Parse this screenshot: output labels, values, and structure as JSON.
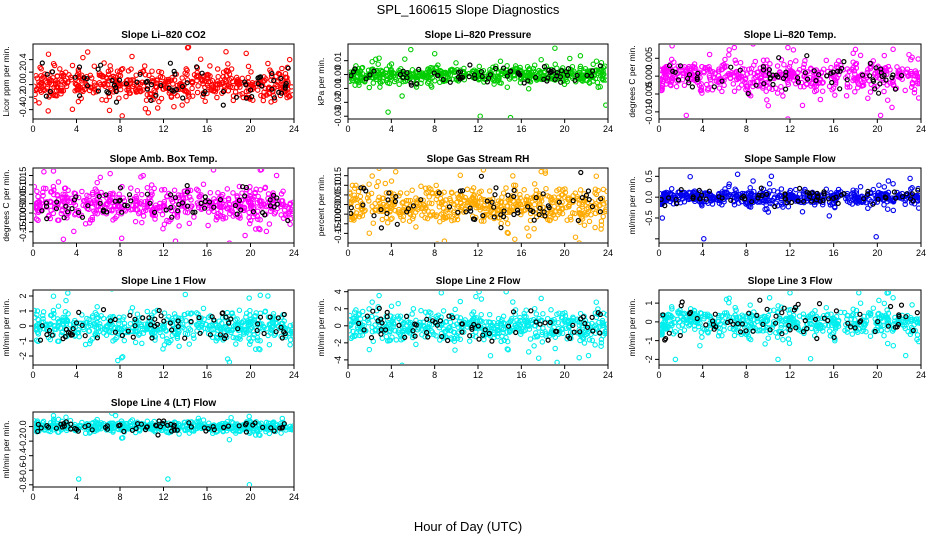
{
  "figure": {
    "title": "SPL_160615  Slope Diagnostics",
    "xlabel": "Hour of Day (UTC)"
  },
  "chart_data": [
    {
      "type": "scatter",
      "title": "Slope Li–820 CO2",
      "ylabel": "Licor ppm per min.",
      "xlim": [
        0,
        24
      ],
      "ylim": [
        -0.55,
        0.65
      ],
      "yticks": [
        -0.4,
        -0.2,
        0.0,
        0.2,
        0.4
      ],
      "ytick_labels": [
        "-0.4",
        "-0.2",
        "0.0",
        "0.2",
        "0.4"
      ],
      "xticks": [
        0,
        4,
        8,
        12,
        16,
        20,
        24
      ],
      "color": "#ff0000",
      "spread": 0.2,
      "outliers": [
        [
          8.2,
          -0.5
        ],
        [
          14.3,
          0.6
        ],
        [
          9.1,
          0.45
        ],
        [
          19.6,
          0.5
        ],
        [
          1.4,
          -0.42
        ],
        [
          10.6,
          -0.45
        ],
        [
          23.6,
          0.4
        ]
      ]
    },
    {
      "type": "scatter",
      "title": "Slope Li–820 Pressure",
      "ylabel": "kPa per min.",
      "xlim": [
        0,
        24
      ],
      "ylim": [
        -0.032,
        0.022
      ],
      "yticks": [
        -0.03,
        -0.02,
        -0.01,
        0.0,
        0.01
      ],
      "ytick_labels": [
        "-0.03",
        "-0.02",
        "-0.01",
        "0.00",
        "0.01"
      ],
      "xticks": [
        0,
        4,
        8,
        12,
        16,
        20,
        24
      ],
      "color": "#00cc00",
      "spread": 0.005,
      "outliers": [
        [
          3.7,
          -0.027
        ],
        [
          5.8,
          0.018
        ],
        [
          8.0,
          0.015
        ],
        [
          12.2,
          -0.03
        ],
        [
          15.0,
          -0.031
        ],
        [
          19.1,
          0.019
        ],
        [
          23.8,
          -0.022
        ]
      ]
    },
    {
      "type": "scatter",
      "title": "Slope Li–820 Temp.",
      "ylabel": "degrees C per min.",
      "xlim": [
        0,
        24
      ],
      "ylim": [
        -0.012,
        0.009
      ],
      "yticks": [
        -0.01,
        -0.005,
        0.0,
        0.005
      ],
      "ytick_labels": [
        "-0.010",
        "-0.005",
        "0.000",
        "0.005"
      ],
      "xticks": [
        0,
        4,
        8,
        12,
        16,
        20,
        24
      ],
      "color": "#ff00ff",
      "spread": 0.0035,
      "outliers": [
        [
          1.2,
          0.0085
        ],
        [
          2.5,
          -0.011
        ],
        [
          6.9,
          0.008
        ],
        [
          11.8,
          -0.012
        ],
        [
          18.0,
          0.0075
        ],
        [
          20.3,
          -0.011
        ],
        [
          22.9,
          0.006
        ]
      ]
    },
    {
      "type": "scatter",
      "title": "Slope Amb. Box Temp.",
      "ylabel": "degrees C per min.",
      "xlim": [
        0,
        24
      ],
      "ylim": [
        -0.21,
        0.19
      ],
      "yticks": [
        -0.15,
        -0.1,
        -0.05,
        0.0,
        0.05,
        0.1,
        0.15
      ],
      "ytick_labels": [
        "-0.15",
        "-0.10",
        "-0.05",
        "0.00",
        "0.05",
        "0.10",
        "0.15"
      ],
      "xticks": [
        0,
        4,
        8,
        12,
        16,
        20,
        24
      ],
      "color": "#ff00ff",
      "spread": 0.07,
      "outliers": [
        [
          1.0,
          0.17
        ],
        [
          2.8,
          -0.19
        ],
        [
          7.1,
          0.16
        ],
        [
          13.1,
          -0.2
        ],
        [
          16.6,
          0.18
        ],
        [
          19.5,
          -0.17
        ],
        [
          22.4,
          0.15
        ]
      ]
    },
    {
      "type": "scatter",
      "title": "Slope Gas Stream RH",
      "ylabel": "percent per min.",
      "xlim": [
        0,
        24
      ],
      "ylim": [
        -0.2,
        0.19
      ],
      "yticks": [
        -0.15,
        -0.1,
        -0.05,
        0.0,
        0.05,
        0.1,
        0.15
      ],
      "ytick_labels": [
        "-0.15",
        "-0.10",
        "-0.05",
        "0.00",
        "0.05",
        "0.10",
        "0.15"
      ],
      "xticks": [
        0,
        4,
        8,
        12,
        16,
        20,
        24
      ],
      "color": "#ffaa00",
      "spread": 0.08,
      "outliers": [
        [
          4.4,
          0.17
        ],
        [
          8.9,
          -0.19
        ],
        [
          12.5,
          0.18
        ],
        [
          15.4,
          -0.18
        ],
        [
          18.2,
          0.175
        ],
        [
          21.0,
          -0.17
        ]
      ]
    },
    {
      "type": "scatter",
      "title": "Slope Sample Flow",
      "ylabel": "ml/min per min.",
      "xlim": [
        0,
        24
      ],
      "ylim": [
        -1.1,
        0.7
      ],
      "yticks": [
        -1.0,
        -0.5,
        0.0,
        0.5
      ],
      "ytick_labels": [
        "",
        "-0.5",
        "0.0",
        "0.5"
      ],
      "xticks": [
        0,
        4,
        8,
        12,
        16,
        20,
        24
      ],
      "color": "#0000ee",
      "spread": 0.15,
      "outliers": [
        [
          4.1,
          -1.0
        ],
        [
          19.9,
          -0.95
        ],
        [
          7.2,
          0.55
        ],
        [
          10.3,
          0.5
        ],
        [
          0.3,
          -0.5
        ],
        [
          15.6,
          -0.45
        ],
        [
          23.0,
          0.45
        ]
      ]
    },
    {
      "type": "scatter",
      "title": "Slope Line 1 Flow",
      "ylabel": "ml/min per min.",
      "xlim": [
        0,
        24
      ],
      "ylim": [
        -2.6,
        2.4
      ],
      "yticks": [
        -2,
        -1,
        0,
        1,
        2
      ],
      "ytick_labels": [
        "-2",
        "-1",
        "0",
        "1",
        "2"
      ],
      "xticks": [
        0,
        4,
        8,
        12,
        16,
        20,
        24
      ],
      "color": "#00eeee",
      "spread": 0.8,
      "outliers": [
        [
          3.2,
          2.2
        ],
        [
          7.8,
          -2.3
        ],
        [
          14.0,
          2.1
        ],
        [
          17.9,
          -2.2
        ],
        [
          21.6,
          2.0
        ]
      ]
    },
    {
      "type": "scatter",
      "title": "Slope Line 2 Flow",
      "ylabel": "ml/min per min.",
      "xlim": [
        0,
        24
      ],
      "ylim": [
        -4.6,
        4.2
      ],
      "yticks": [
        -4,
        -2,
        0,
        2,
        4
      ],
      "ytick_labels": [
        "-4",
        "-2",
        "0",
        "2",
        "4"
      ],
      "xticks": [
        0,
        4,
        8,
        12,
        16,
        20,
        24
      ],
      "color": "#00eeee",
      "spread": 1.5,
      "outliers": [
        [
          12.1,
          4.0
        ],
        [
          14.6,
          4.0
        ],
        [
          19.3,
          -4.3
        ],
        [
          17.6,
          -3.8
        ],
        [
          22.2,
          -3.5
        ]
      ]
    },
    {
      "type": "scatter",
      "title": "Slope Line 3 Flow",
      "ylabel": "ml/min per min.",
      "xlim": [
        0,
        24
      ],
      "ylim": [
        -2.3,
        1.7
      ],
      "yticks": [
        -2,
        -1,
        0,
        1
      ],
      "ytick_labels": [
        "-2",
        "-1",
        "0",
        "1"
      ],
      "xticks": [
        0,
        4,
        8,
        12,
        16,
        20,
        24
      ],
      "color": "#00eeee",
      "spread": 0.6,
      "outliers": [
        [
          12.0,
          1.55
        ],
        [
          18.3,
          1.55
        ],
        [
          10.9,
          -2.0
        ],
        [
          1.5,
          -2.0
        ],
        [
          22.6,
          -1.8
        ]
      ]
    },
    {
      "type": "scatter",
      "title": "Slope Line 4 (LT) Flow",
      "ylabel": "ml/min per min.",
      "xlim": [
        0,
        24
      ],
      "ylim": [
        -0.83,
        0.2
      ],
      "yticks": [
        -0.8,
        -0.6,
        -0.4,
        -0.2,
        0.0
      ],
      "ytick_labels": [
        "-0.8",
        "-0.6",
        "-0.4",
        "-0.2",
        "0.0"
      ],
      "xticks": [
        0,
        4,
        8,
        12,
        16,
        20,
        24
      ],
      "color": "#00eeee",
      "spread": 0.06,
      "outliers": [
        [
          4.2,
          -0.72
        ],
        [
          19.9,
          -0.8
        ],
        [
          12.4,
          -0.72
        ],
        [
          7.6,
          0.15
        ],
        [
          1.9,
          0.1
        ]
      ]
    }
  ]
}
